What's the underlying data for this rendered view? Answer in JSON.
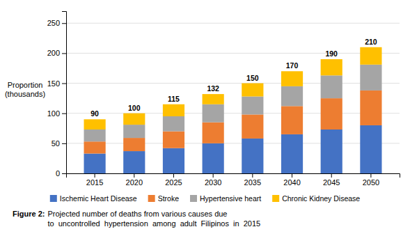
{
  "chart_data": {
    "type": "bar",
    "stacked": true,
    "categories": [
      "2015",
      "2020",
      "2025",
      "2030",
      "2035",
      "2040",
      "2045",
      "2050"
    ],
    "series": [
      {
        "name": "Ischemic Heart Disease",
        "color": "#4472C4",
        "values": [
          33,
          37,
          42,
          50,
          58,
          65,
          73,
          80
        ]
      },
      {
        "name": "Stroke",
        "color": "#ED7D31",
        "values": [
          20,
          22,
          28,
          35,
          40,
          47,
          52,
          58
        ]
      },
      {
        "name": "Hypertensive heart",
        "color": "#A5A5A5",
        "values": [
          20,
          22,
          25,
          30,
          30,
          33,
          38,
          43
        ]
      },
      {
        "name": "Chronic Kidney Disease",
        "color": "#FFC000",
        "values": [
          17,
          19,
          20,
          17,
          22,
          25,
          27,
          29
        ]
      }
    ],
    "totals": [
      90,
      100,
      115,
      132,
      150,
      170,
      190,
      210
    ],
    "y_label": "Proportion\n(thousands)",
    "ylim": [
      0,
      270
    ],
    "yticks": [
      0,
      50,
      100,
      150,
      200,
      250
    ],
    "grid": true,
    "legend": "bottom",
    "caption_label": "Figure 2:",
    "caption": [
      "Projected number of deaths from various causes due",
      "to  uncontrolled  hypertension  among  adult  Filipinos  in  2015"
    ]
  }
}
